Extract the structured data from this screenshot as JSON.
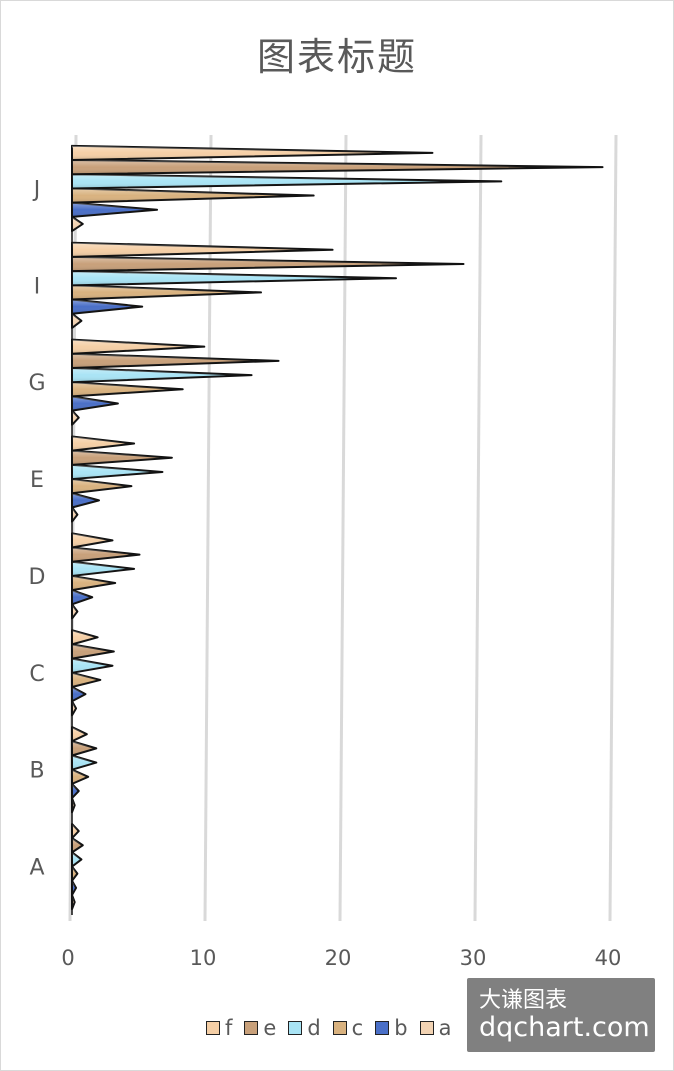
{
  "chart_data": {
    "type": "bar",
    "orientation": "horizontal",
    "title": "图表标题",
    "categories": [
      "A",
      "B",
      "C",
      "D",
      "E",
      "G",
      "I",
      "J"
    ],
    "xlim": [
      0,
      40
    ],
    "xticks": [
      0,
      10,
      20,
      30,
      40
    ],
    "grid": true,
    "legend_position": "bottom",
    "series": [
      {
        "name": "a",
        "color": "#f2d3b3",
        "values": [
          0.2,
          0.2,
          0.3,
          0.4,
          0.4,
          0.5,
          0.7,
          0.8
        ]
      },
      {
        "name": "b",
        "color": "#4a6fc7",
        "values": [
          0.3,
          0.5,
          1.0,
          1.5,
          2.0,
          3.4,
          5.2,
          6.3
        ]
      },
      {
        "name": "c",
        "color": "#d9b27f",
        "values": [
          0.4,
          1.2,
          2.1,
          3.2,
          4.4,
          8.2,
          14.0,
          17.9
        ]
      },
      {
        "name": "d",
        "color": "#a9e4f5",
        "values": [
          0.7,
          1.8,
          3.0,
          4.6,
          6.7,
          13.3,
          24.0,
          31.8
        ]
      },
      {
        "name": "e",
        "color": "#c8a07a",
        "values": [
          0.8,
          1.8,
          3.1,
          5.0,
          7.4,
          15.3,
          29.0,
          39.3
        ]
      },
      {
        "name": "f",
        "color": "#f5cfa6",
        "values": [
          0.5,
          1.1,
          1.9,
          3.0,
          4.6,
          9.8,
          19.3,
          26.7
        ]
      }
    ]
  },
  "watermark": {
    "line1": "大谦图表",
    "line2": "dqchart.com"
  }
}
